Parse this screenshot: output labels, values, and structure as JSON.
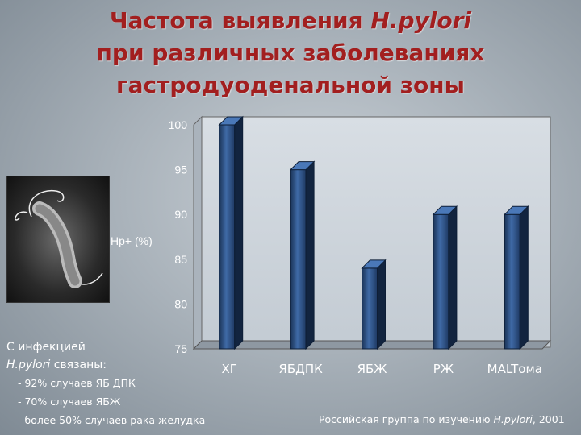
{
  "title": {
    "line1_text": "Частота выявления ",
    "line1_italic": "H.pylori",
    "line2": "при различных заболеваниях",
    "line3": "гастродуоденальной зоны"
  },
  "ylabel_text": "Hp+ (%)",
  "info": {
    "line1": "С инфекцией",
    "line2_italic": "H.pylori",
    "line2_rest": " связаны:",
    "items": [
      "- 92% случаев ЯБ ДПК",
      "- 70% случаев ЯБЖ",
      "- более 50% случаев рака желудка"
    ]
  },
  "source": {
    "text": "Российская группа по изучению ",
    "italic": "H.pylori",
    "year": ", 2001"
  },
  "colors": {
    "title": "#a21f1f",
    "bar": "#2a4c7c",
    "axis_text": "#ffffff"
  },
  "icons": {
    "photo": "bacterium-micrograph"
  },
  "chart_data": {
    "type": "bar",
    "categories": [
      "ХГ",
      "ЯБДПК",
      "ЯБЖ",
      "РЖ",
      "MALTома"
    ],
    "values": [
      100,
      95,
      84,
      90,
      90
    ],
    "ylabel": "Hp+ (%)",
    "ylim": [
      75,
      100
    ],
    "yticks": [
      75,
      80,
      85,
      90,
      95,
      100
    ],
    "grid": false,
    "three_d": true
  }
}
